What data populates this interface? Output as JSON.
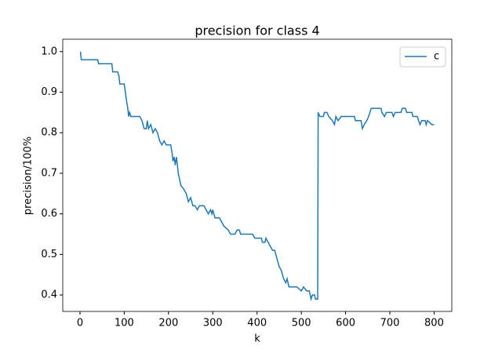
{
  "chart_data": {
    "type": "line",
    "title": "precision for class 4",
    "xlabel": "k",
    "ylabel": "precision/100%",
    "x": [
      1,
      3,
      40,
      42,
      72,
      74,
      85,
      88,
      90,
      100,
      105,
      108,
      110,
      112,
      115,
      135,
      140,
      145,
      150,
      152,
      155,
      160,
      165,
      170,
      175,
      180,
      185,
      190,
      195,
      205,
      208,
      210,
      213,
      215,
      218,
      222,
      228,
      235,
      240,
      245,
      250,
      255,
      260,
      265,
      270,
      280,
      285,
      290,
      295,
      298,
      300,
      305,
      315,
      320,
      325,
      335,
      340,
      350,
      355,
      360,
      363,
      390,
      395,
      410,
      412,
      418,
      420,
      425,
      430,
      435,
      440,
      445,
      450,
      455,
      460,
      465,
      468,
      472,
      490,
      500,
      505,
      512,
      518,
      522,
      525,
      530,
      532,
      537,
      538,
      542,
      550,
      552,
      558,
      562,
      570,
      575,
      578,
      583,
      590,
      620,
      622,
      635,
      638,
      642,
      648,
      652,
      658,
      680,
      682,
      688,
      692,
      705,
      708,
      712,
      725,
      728,
      735,
      738,
      750,
      752,
      762,
      765,
      768,
      772,
      780,
      782,
      785,
      795,
      800
    ],
    "series": [
      {
        "name": "c",
        "color": "#1f77b4",
        "values": [
          1.0,
          0.98,
          0.98,
          0.97,
          0.97,
          0.95,
          0.95,
          0.94,
          0.92,
          0.92,
          0.88,
          0.86,
          0.84,
          0.85,
          0.84,
          0.84,
          0.83,
          0.81,
          0.81,
          0.83,
          0.81,
          0.82,
          0.8,
          0.81,
          0.8,
          0.78,
          0.77,
          0.78,
          0.77,
          0.77,
          0.75,
          0.73,
          0.74,
          0.72,
          0.74,
          0.7,
          0.67,
          0.66,
          0.65,
          0.63,
          0.64,
          0.62,
          0.62,
          0.61,
          0.62,
          0.62,
          0.61,
          0.6,
          0.61,
          0.6,
          0.61,
          0.59,
          0.59,
          0.58,
          0.57,
          0.56,
          0.55,
          0.55,
          0.56,
          0.56,
          0.55,
          0.55,
          0.54,
          0.54,
          0.53,
          0.53,
          0.54,
          0.53,
          0.52,
          0.51,
          0.51,
          0.49,
          0.47,
          0.46,
          0.44,
          0.43,
          0.44,
          0.42,
          0.42,
          0.41,
          0.42,
          0.41,
          0.41,
          0.39,
          0.4,
          0.4,
          0.39,
          0.39,
          0.85,
          0.84,
          0.84,
          0.85,
          0.85,
          0.84,
          0.83,
          0.82,
          0.84,
          0.83,
          0.84,
          0.84,
          0.83,
          0.83,
          0.81,
          0.82,
          0.83,
          0.84,
          0.86,
          0.86,
          0.85,
          0.84,
          0.85,
          0.85,
          0.84,
          0.85,
          0.85,
          0.86,
          0.86,
          0.85,
          0.85,
          0.84,
          0.84,
          0.83,
          0.82,
          0.83,
          0.83,
          0.82,
          0.83,
          0.82,
          0.82
        ]
      }
    ],
    "xlim": [
      -38.95,
      839.95
    ],
    "xticks": [
      0,
      100,
      200,
      300,
      400,
      500,
      600,
      700,
      800
    ],
    "ylim": [
      0.3595,
      1.0305
    ],
    "yticks": [
      0.4,
      0.5,
      0.6,
      0.7,
      0.8,
      0.9,
      {
        "value": 1.0,
        "label": "1.0"
      }
    ],
    "legend": "upper right"
  }
}
